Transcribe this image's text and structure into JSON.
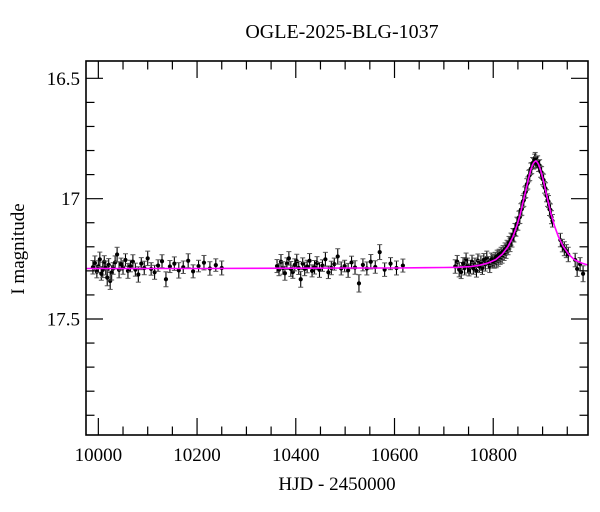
{
  "chart_data": {
    "type": "scatter",
    "title": "OGLE-2025-BLG-1037",
    "xlabel": "HJD - 2450000",
    "ylabel": "I magnitude",
    "x_range": [
      9975,
      10992
    ],
    "y_range": [
      16.428,
      17.982
    ],
    "y_inverted": true,
    "grid": false,
    "legend": "none",
    "x_ticks": {
      "major_values": [
        10000,
        10200,
        10400,
        10600,
        10800
      ],
      "major_labels": [
        "10000",
        "10200",
        "10400",
        "10600",
        "10800"
      ],
      "minor_step": 50
    },
    "y_ticks": {
      "major_values": [
        16.5,
        17.0,
        17.5
      ],
      "major_labels": [
        "16.5",
        "17",
        "17.5"
      ],
      "minor_step": 0.1
    },
    "colors": {
      "background": "#ffffff",
      "frame": "#000000",
      "data_points": "#000000",
      "error_bar_caps": "#555555",
      "model_curve": "#ff00ff"
    },
    "baseline_magnitude": 17.29,
    "peak_magnitude": 16.84,
    "peak_hjd": 10886,
    "model_curve": [
      [
        9975,
        17.29
      ],
      [
        10200,
        17.29
      ],
      [
        10400,
        17.289
      ],
      [
        10520,
        17.288
      ],
      [
        10600,
        17.288
      ],
      [
        10660,
        17.287
      ],
      [
        10700,
        17.286
      ],
      [
        10730,
        17.285
      ],
      [
        10755,
        17.282
      ],
      [
        10772,
        17.277
      ],
      [
        10790,
        17.267
      ],
      [
        10805,
        17.253
      ],
      [
        10818,
        17.231
      ],
      [
        10830,
        17.199
      ],
      [
        10840,
        17.158
      ],
      [
        10848,
        17.112
      ],
      [
        10855,
        17.062
      ],
      [
        10861,
        17.01
      ],
      [
        10867,
        16.957
      ],
      [
        10872,
        16.912
      ],
      [
        10876,
        16.882
      ],
      [
        10880,
        16.858
      ],
      [
        10883,
        16.848
      ],
      [
        10886,
        16.843
      ],
      [
        10889,
        16.848
      ],
      [
        10892,
        16.858
      ],
      [
        10896,
        16.882
      ],
      [
        10900,
        16.912
      ],
      [
        10905,
        16.957
      ],
      [
        10911,
        17.01
      ],
      [
        10917,
        17.062
      ],
      [
        10924,
        17.112
      ],
      [
        10932,
        17.158
      ],
      [
        10942,
        17.199
      ],
      [
        10953,
        17.231
      ],
      [
        10964,
        17.253
      ],
      [
        10978,
        17.267
      ],
      [
        10992,
        17.276
      ]
    ],
    "points": [
      [
        9989,
        17.285,
        0.028
      ],
      [
        9993,
        17.268,
        0.03
      ],
      [
        9997,
        17.303,
        0.026
      ],
      [
        10000,
        17.282,
        0.024
      ],
      [
        10003,
        17.252,
        0.03
      ],
      [
        10006,
        17.312,
        0.027
      ],
      [
        10009,
        17.296,
        0.032
      ],
      [
        10012,
        17.262,
        0.025
      ],
      [
        10015,
        17.288,
        0.029
      ],
      [
        10018,
        17.328,
        0.034
      ],
      [
        10021,
        17.275,
        0.026
      ],
      [
        10024,
        17.342,
        0.035
      ],
      [
        10027,
        17.308,
        0.03
      ],
      [
        10030,
        17.29,
        0.024
      ],
      [
        10034,
        17.265,
        0.027
      ],
      [
        10038,
        17.232,
        0.03
      ],
      [
        10042,
        17.296,
        0.033
      ],
      [
        10046,
        17.272,
        0.025
      ],
      [
        10050,
        17.286,
        0.028
      ],
      [
        10055,
        17.255,
        0.026
      ],
      [
        10060,
        17.3,
        0.031
      ],
      [
        10065,
        17.28,
        0.024
      ],
      [
        10070,
        17.262,
        0.029
      ],
      [
        10075,
        17.295,
        0.027
      ],
      [
        10081,
        17.315,
        0.032
      ],
      [
        10087,
        17.27,
        0.025
      ],
      [
        10093,
        17.288,
        0.028
      ],
      [
        10100,
        17.248,
        0.03
      ],
      [
        10107,
        17.292,
        0.026
      ],
      [
        10114,
        17.306,
        0.029
      ],
      [
        10121,
        17.278,
        0.024
      ],
      [
        10129,
        17.26,
        0.027
      ],
      [
        10137,
        17.335,
        0.031
      ],
      [
        10145,
        17.282,
        0.025
      ],
      [
        10154,
        17.27,
        0.028
      ],
      [
        10163,
        17.298,
        0.032
      ],
      [
        10172,
        17.285,
        0.026
      ],
      [
        10182,
        17.258,
        0.029
      ],
      [
        10192,
        17.302,
        0.027
      ],
      [
        10203,
        17.28,
        0.024
      ],
      [
        10214,
        17.266,
        0.03
      ],
      [
        10226,
        17.29,
        0.028
      ],
      [
        10238,
        17.276,
        0.026
      ],
      [
        10250,
        17.288,
        0.029
      ],
      [
        10362,
        17.28,
        0.027
      ],
      [
        10366,
        17.295,
        0.025
      ],
      [
        10370,
        17.262,
        0.03
      ],
      [
        10374,
        17.288,
        0.026
      ],
      [
        10378,
        17.31,
        0.029
      ],
      [
        10382,
        17.27,
        0.024
      ],
      [
        10386,
        17.248,
        0.028
      ],
      [
        10390,
        17.292,
        0.031
      ],
      [
        10394,
        17.305,
        0.026
      ],
      [
        10398,
        17.275,
        0.025
      ],
      [
        10402,
        17.26,
        0.029
      ],
      [
        10406,
        17.288,
        0.027
      ],
      [
        10410,
        17.335,
        0.033
      ],
      [
        10414,
        17.27,
        0.024
      ],
      [
        10418,
        17.292,
        0.028
      ],
      [
        10423,
        17.282,
        0.026
      ],
      [
        10428,
        17.258,
        0.03
      ],
      [
        10433,
        17.3,
        0.025
      ],
      [
        10438,
        17.285,
        0.028
      ],
      [
        10443,
        17.268,
        0.027
      ],
      [
        10448,
        17.296,
        0.031
      ],
      [
        10454,
        17.278,
        0.024
      ],
      [
        10460,
        17.252,
        0.029
      ],
      [
        10466,
        17.306,
        0.026
      ],
      [
        10472,
        17.288,
        0.028
      ],
      [
        10478,
        17.272,
        0.025
      ],
      [
        10485,
        17.24,
        0.032
      ],
      [
        10492,
        17.29,
        0.027
      ],
      [
        10499,
        17.28,
        0.024
      ],
      [
        10506,
        17.298,
        0.029
      ],
      [
        10513,
        17.265,
        0.026
      ],
      [
        10520,
        17.286,
        0.028
      ],
      [
        10528,
        17.352,
        0.036
      ],
      [
        10536,
        17.275,
        0.025
      ],
      [
        10544,
        17.29,
        0.027
      ],
      [
        10552,
        17.262,
        0.03
      ],
      [
        10561,
        17.284,
        0.026
      ],
      [
        10570,
        17.222,
        0.031
      ],
      [
        10580,
        17.295,
        0.028
      ],
      [
        10592,
        17.27,
        0.025
      ],
      [
        10604,
        17.288,
        0.029
      ],
      [
        10617,
        17.278,
        0.027
      ],
      [
        10723,
        17.282,
        0.028
      ],
      [
        10727,
        17.262,
        0.026
      ],
      [
        10731,
        17.295,
        0.03
      ],
      [
        10735,
        17.305,
        0.027
      ],
      [
        10739,
        17.27,
        0.025
      ],
      [
        10742,
        17.288,
        0.029
      ],
      [
        10745,
        17.252,
        0.026
      ],
      [
        10748,
        17.278,
        0.031
      ],
      [
        10751,
        17.296,
        0.025
      ],
      [
        10754,
        17.284,
        0.028
      ],
      [
        10757,
        17.262,
        0.027
      ],
      [
        10760,
        17.29,
        0.024
      ],
      [
        10763,
        17.276,
        0.029
      ],
      [
        10766,
        17.3,
        0.026
      ],
      [
        10769,
        17.258,
        0.028
      ],
      [
        10772,
        17.282,
        0.025
      ],
      [
        10775,
        17.268,
        0.03
      ],
      [
        10778,
        17.288,
        0.027
      ],
      [
        10781,
        17.254,
        0.026
      ],
      [
        10784,
        17.272,
        0.029
      ],
      [
        10787,
        17.246,
        0.028
      ],
      [
        10790,
        17.266,
        0.025
      ],
      [
        10793,
        17.28,
        0.027
      ],
      [
        10796,
        17.252,
        0.026
      ],
      [
        10799,
        17.26,
        0.028
      ],
      [
        10802,
        17.262,
        0.027
      ],
      [
        10804,
        17.248,
        0.025
      ],
      [
        10806,
        17.259,
        0.028
      ],
      [
        10808,
        17.24,
        0.026
      ],
      [
        10810,
        17.252,
        0.029
      ],
      [
        10812,
        17.235,
        0.025
      ],
      [
        10814,
        17.246,
        0.027
      ],
      [
        10816,
        17.228,
        0.026
      ],
      [
        10818,
        17.24,
        0.028
      ],
      [
        10820,
        17.22,
        0.025
      ],
      [
        10822,
        17.23,
        0.027
      ],
      [
        10824,
        17.21,
        0.026
      ],
      [
        10826,
        17.22,
        0.028
      ],
      [
        10828,
        17.198,
        0.025
      ],
      [
        10830,
        17.206,
        0.027
      ],
      [
        10832,
        17.183,
        0.026
      ],
      [
        10834,
        17.192,
        0.028
      ],
      [
        10836,
        17.168,
        0.025
      ],
      [
        10838,
        17.174,
        0.027
      ],
      [
        10840,
        17.15,
        0.026
      ],
      [
        10842,
        17.153,
        0.027
      ],
      [
        10844,
        17.128,
        0.025
      ],
      [
        10846,
        17.13,
        0.026
      ],
      [
        10848,
        17.104,
        0.027
      ],
      [
        10850,
        17.106,
        0.025
      ],
      [
        10852,
        17.078,
        0.026
      ],
      [
        10854,
        17.076,
        0.027
      ],
      [
        10856,
        17.046,
        0.025
      ],
      [
        10858,
        17.043,
        0.026
      ],
      [
        10860,
        17.012,
        0.025
      ],
      [
        10862,
        17.006,
        0.026
      ],
      [
        10864,
        16.975,
        0.024
      ],
      [
        10866,
        16.971,
        0.025
      ],
      [
        10868,
        16.941,
        0.024
      ],
      [
        10870,
        16.935,
        0.025
      ],
      [
        10872,
        16.906,
        0.024
      ],
      [
        10874,
        16.902,
        0.023
      ],
      [
        10876,
        16.876,
        0.024
      ],
      [
        10878,
        16.873,
        0.023
      ],
      [
        10880,
        16.852,
        0.023
      ],
      [
        10882,
        16.855,
        0.022
      ],
      [
        10884,
        16.838,
        0.023
      ],
      [
        10885,
        16.83,
        0.022
      ],
      [
        10886,
        16.848,
        0.023
      ],
      [
        10888,
        16.85,
        0.023
      ],
      [
        10890,
        16.844,
        0.022
      ],
      [
        10892,
        16.864,
        0.023
      ],
      [
        10894,
        16.862,
        0.024
      ],
      [
        10896,
        16.888,
        0.023
      ],
      [
        10898,
        16.891,
        0.024
      ],
      [
        10900,
        16.918,
        0.024
      ],
      [
        10902,
        16.923,
        0.025
      ],
      [
        10904,
        16.953,
        0.024
      ],
      [
        10906,
        16.959,
        0.025
      ],
      [
        10908,
        16.988,
        0.025
      ],
      [
        10910,
        17.006,
        0.026
      ],
      [
        10912,
        17.012,
        0.025
      ],
      [
        10914,
        17.044,
        0.026
      ],
      [
        10916,
        17.047,
        0.025
      ],
      [
        10918,
        17.077,
        0.027
      ],
      [
        10920,
        17.092,
        0.026
      ],
      [
        10936,
        17.172,
        0.028
      ],
      [
        10940,
        17.195,
        0.026
      ],
      [
        10944,
        17.208,
        0.029
      ],
      [
        10948,
        17.218,
        0.027
      ],
      [
        10952,
        17.232,
        0.03
      ],
      [
        10966,
        17.255,
        0.028
      ],
      [
        10970,
        17.292,
        0.031
      ],
      [
        10976,
        17.272,
        0.027
      ],
      [
        10982,
        17.312,
        0.033
      ]
    ]
  }
}
